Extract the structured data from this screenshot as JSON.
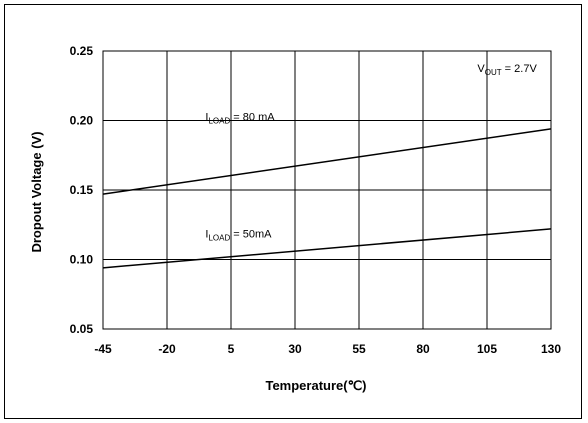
{
  "chart_data": {
    "type": "line",
    "title": "",
    "xlabel": "Temperature(℃)",
    "ylabel": "Dropout Voltage (V)",
    "xlim": [
      -45,
      130
    ],
    "ylim": [
      0.05,
      0.25
    ],
    "x_ticks": [
      "-45",
      "-20",
      "5",
      "30",
      "55",
      "80",
      "105",
      "130"
    ],
    "y_ticks": [
      "0.05",
      "0.10",
      "0.15",
      "0.20",
      "0.25"
    ],
    "grid": true,
    "series": [
      {
        "name_main": "I",
        "name_sub": "LOAD",
        "name_rest": " = 80 mA",
        "color": "#000000",
        "x": [
          -45,
          130
        ],
        "y": [
          0.147,
          0.194
        ],
        "label_at": [
          -5,
          0.2
        ]
      },
      {
        "name_main": "I",
        "name_sub": "LOAD",
        "name_rest": " = 50mA",
        "color": "#000000",
        "x": [
          -45,
          130
        ],
        "y": [
          0.094,
          0.122
        ],
        "label_at": [
          -5,
          0.116
        ]
      }
    ],
    "annotation": {
      "main": "V",
      "sub": "OUT",
      "rest": " = 2.7V",
      "at": [
        120,
        0.245
      ]
    }
  }
}
